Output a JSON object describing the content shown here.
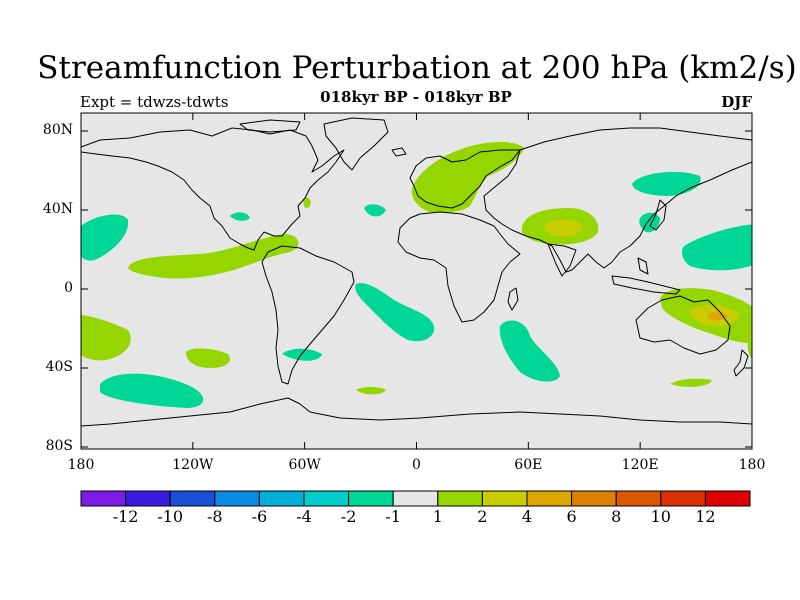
{
  "title": "Streamfunction Perturbation at 200 hPa (km2/s)",
  "subtitle": "018kyr BP - 018kyr BP",
  "left_label": "Expt = tdwzs-tdwts",
  "right_label": "DJF",
  "axes": {
    "lat_ticks": [
      "80N",
      "40N",
      "0",
      "40S",
      "80S"
    ],
    "lon_ticks": [
      "180",
      "120W",
      "60W",
      "0",
      "60E",
      "120E",
      "180"
    ]
  },
  "colorbar": {
    "colors": [
      "#7d1be8",
      "#3a1be0",
      "#1a4fd8",
      "#0a8ae0",
      "#00b0d8",
      "#00cccc",
      "#00d796",
      "#e6e6e6",
      "#96d600",
      "#c8cc00",
      "#dca800",
      "#dc8000",
      "#dc5800",
      "#dc3000",
      "#dc0000"
    ],
    "labels": [
      "-12",
      "-10",
      "-8",
      "-6",
      "-4",
      "-2",
      "-1",
      "1",
      "2",
      "4",
      "6",
      "8",
      "10",
      "12"
    ]
  },
  "colors": {
    "background": "#e6e6e6",
    "green_pos": "#96d600",
    "yellow_pos": "#c8cc00",
    "orange_pos": "#dca800",
    "teal_neg": "#00d796"
  }
}
